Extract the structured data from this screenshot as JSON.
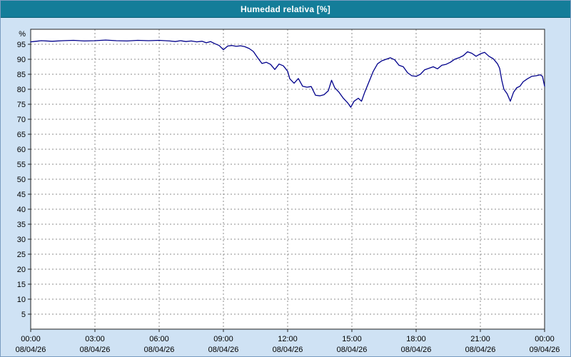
{
  "window": {
    "title": "Humedad relativa [%]"
  },
  "colors": {
    "titlebar_bg": "#147d99",
    "titlebar_text": "#ffffff",
    "page_bg": "#cfe2f4",
    "plot_bg": "#ffffff",
    "grid": "#8c8c8c",
    "axis": "#222222",
    "line": "#00008b",
    "tick_text": "#000000"
  },
  "chart_data": {
    "type": "line",
    "title": "Humedad relativa [%]",
    "xlabel": "",
    "ylabel": "%",
    "ylim": [
      0,
      100
    ],
    "y_ticks": [
      5,
      10,
      15,
      20,
      25,
      30,
      35,
      40,
      45,
      50,
      55,
      60,
      65,
      70,
      75,
      80,
      85,
      90,
      95
    ],
    "x_range_hours": [
      0,
      24
    ],
    "x_tick_hours": [
      0,
      3,
      6,
      9,
      12,
      15,
      18,
      21,
      24
    ],
    "x_tick_times": [
      "00:00",
      "03:00",
      "06:00",
      "09:00",
      "12:00",
      "15:00",
      "18:00",
      "21:00",
      "00:00"
    ],
    "x_tick_dates": [
      "08/04/26",
      "08/04/26",
      "08/04/26",
      "08/04/26",
      "08/04/26",
      "08/04/26",
      "08/04/26",
      "08/04/26",
      "09/04/26"
    ],
    "grid": true,
    "legend": "none",
    "series": [
      {
        "name": "Humedad relativa",
        "color": "#00008b",
        "x": [
          0,
          0.25,
          0.5,
          1,
          1.5,
          2,
          2.5,
          3,
          3.5,
          4,
          4.5,
          5,
          5.5,
          6,
          6.5,
          6.75,
          7,
          7.25,
          7.5,
          7.75,
          8,
          8.2,
          8.4,
          8.6,
          8.8,
          9,
          9.2,
          9.4,
          9.6,
          9.8,
          10,
          10.2,
          10.4,
          10.6,
          10.8,
          11,
          11.2,
          11.4,
          11.6,
          11.8,
          12,
          12.1,
          12.3,
          12.5,
          12.7,
          12.9,
          13.1,
          13.3,
          13.5,
          13.7,
          13.9,
          14.05,
          14.2,
          14.4,
          14.6,
          14.8,
          14.95,
          15.1,
          15.3,
          15.45,
          15.6,
          15.8,
          16,
          16.2,
          16.4,
          16.6,
          16.8,
          17,
          17.2,
          17.4,
          17.6,
          17.8,
          18,
          18.2,
          18.4,
          18.6,
          18.8,
          19,
          19.2,
          19.4,
          19.6,
          19.8,
          20,
          20.2,
          20.4,
          20.6,
          20.8,
          21,
          21.2,
          21.4,
          21.6,
          21.8,
          21.9,
          22,
          22.1,
          22.25,
          22.4,
          22.55,
          22.7,
          22.85,
          23,
          23.2,
          23.4,
          23.6,
          23.8,
          23.9,
          24
        ],
        "y": [
          95.8,
          96,
          96.2,
          96,
          96.2,
          96.3,
          96.1,
          96.2,
          96.4,
          96.2,
          96.1,
          96.3,
          96.2,
          96.3,
          96.1,
          95.9,
          96.2,
          95.9,
          96.1,
          95.8,
          96,
          95.5,
          95.9,
          95.2,
          94.6,
          93.2,
          94.4,
          94.6,
          94.3,
          94.5,
          94.2,
          93.6,
          92.6,
          90.5,
          88.6,
          89,
          88.3,
          86.6,
          88.4,
          87.8,
          86,
          83.5,
          82,
          83.6,
          81,
          80.7,
          80.9,
          78,
          77.8,
          78.2,
          79.5,
          83,
          80.5,
          79,
          77,
          75.5,
          74,
          76,
          77,
          76,
          79,
          82.5,
          86,
          88.5,
          89.5,
          90,
          90.5,
          89.8,
          88,
          87.5,
          85.5,
          84.5,
          84.3,
          85,
          86.5,
          87,
          87.5,
          86.8,
          88,
          88.3,
          89,
          90,
          90.5,
          91.2,
          92.5,
          92,
          91,
          91.8,
          92.3,
          91,
          90.2,
          88.5,
          87,
          83,
          80,
          78.5,
          76,
          79,
          80.5,
          81,
          82.5,
          83.5,
          84.3,
          84.5,
          84.8,
          84.3,
          81
        ]
      }
    ]
  }
}
